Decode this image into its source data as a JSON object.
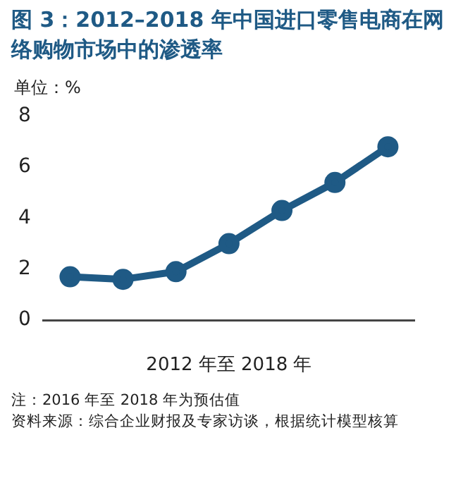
{
  "chart_data": {
    "type": "line",
    "title": "图 3：2012–2018 年中国进口零售电商在网络购物市场中的渗透率",
    "ylabel": "单位：%",
    "xlabel": "2012 年至 2018 年",
    "categories": [
      null,
      null,
      null,
      null,
      null,
      null,
      null
    ],
    "series": [
      {
        "color": "#1f5a85",
        "values": [
          1.7,
          1.6,
          1.9,
          3.0,
          4.3,
          5.4,
          6.8
        ]
      }
    ],
    "ylim": [
      0,
      8
    ],
    "yticks": [
      0,
      2,
      4,
      6,
      8
    ],
    "grid": false,
    "legend": false,
    "marker": "circle",
    "line_style": "solid",
    "annotations": [
      "注：2016 年至 2018 年为预估值",
      "资料来源：综合企业财报及专家访谈，根据统计模型核算"
    ]
  }
}
